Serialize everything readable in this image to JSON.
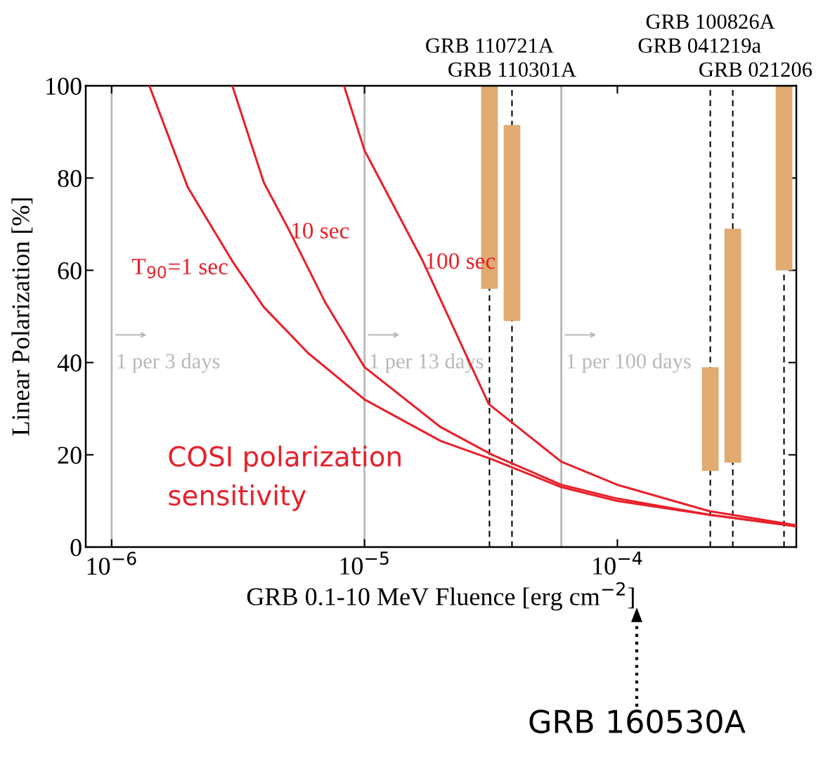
{
  "chart_data": {
    "type": "line",
    "xlabel": "GRB 0.1-10 MeV Fluence [erg cm$^{−2}$]",
    "ylabel": "Linear Polarization [%]",
    "log": "x",
    "xlim": [
      7.9e-07,
      0.00051
    ],
    "ylim": [
      0,
      100
    ],
    "xticks": [
      {
        "value": 1e-06,
        "label": "10$^{−6}$"
      },
      {
        "value": 1e-05,
        "label": "10$^{−5}$"
      },
      {
        "value": 0.0001,
        "label": "10$^{−4}$"
      }
    ],
    "yticks": [
      0,
      20,
      40,
      60,
      80,
      100
    ],
    "grid": false,
    "series": [
      {
        "name": "T$_{90}$=1 sec",
        "color": "#e8202a",
        "x": [
          1.41e-06,
          2e-06,
          3e-06,
          4e-06,
          6e-06,
          1e-05,
          2e-05,
          3.2e-05,
          6e-05,
          0.0001,
          0.00023,
          0.00051
        ],
        "values": [
          100,
          78,
          62,
          52,
          42,
          32,
          23,
          19,
          13,
          10,
          7,
          4.5
        ]
      },
      {
        "name": "10 sec",
        "color": "#e8202a",
        "x": [
          3e-06,
          4e-06,
          5e-06,
          7e-06,
          1e-05,
          2e-05,
          3.2e-05,
          6e-05,
          0.0001,
          0.00023,
          0.00051
        ],
        "values": [
          100,
          79,
          69,
          53,
          39,
          26,
          20,
          13.5,
          10.5,
          7,
          4.5
        ]
      },
      {
        "name": "100 sec",
        "color": "#e8202a",
        "x": [
          8.3e-06,
          1e-05,
          1.7e-05,
          3.1e-05,
          6e-05,
          0.0001,
          0.00023,
          0.00051
        ],
        "values": [
          100,
          86,
          62,
          31,
          18.5,
          13.5,
          7.8,
          4.7
        ]
      },
      {
        "type": "bar",
        "color": "#e0aa70",
        "x": [
          3.12e-05,
          3.83e-05,
          0.000233,
          0.000286,
          0.000456
        ],
        "base": [
          56,
          49,
          16.5,
          18.3,
          60
        ],
        "values": [
          44,
          42.5,
          22.5,
          50.7,
          40
        ]
      }
    ],
    "ref_lines": [
      {
        "axis": "x",
        "value": 1e-06,
        "label": "1 per 3 days",
        "color": "#b8b8b8"
      },
      {
        "axis": "x",
        "value": 1e-05,
        "label": "1 per 13 days",
        "color": "#b8b8b8"
      },
      {
        "axis": "x",
        "value": 6e-05,
        "label": "1 per 100 days",
        "color": "#b8b8b8"
      },
      {
        "axis": "x",
        "value": 3.12e-05,
        "label": "GRB 110721A",
        "color": "#000000",
        "line_style": "dashed"
      },
      {
        "axis": "x",
        "value": 3.83e-05,
        "label": "GRB 110301A",
        "color": "#000000",
        "line_style": "dashed"
      },
      {
        "axis": "x",
        "value": 0.000233,
        "label": "GRB 100826A",
        "color": "#000000",
        "line_style": "dashed"
      },
      {
        "axis": "x",
        "value": 0.000286,
        "label": "GRB 041219a",
        "color": "#000000",
        "line_style": "dashed"
      },
      {
        "axis": "x",
        "value": 0.000456,
        "label": "GRB 021206",
        "color": "#000000",
        "line_style": "dashed"
      }
    ],
    "annotations": [
      "COSI polarization sensitivity",
      "GRB 160530A"
    ]
  }
}
